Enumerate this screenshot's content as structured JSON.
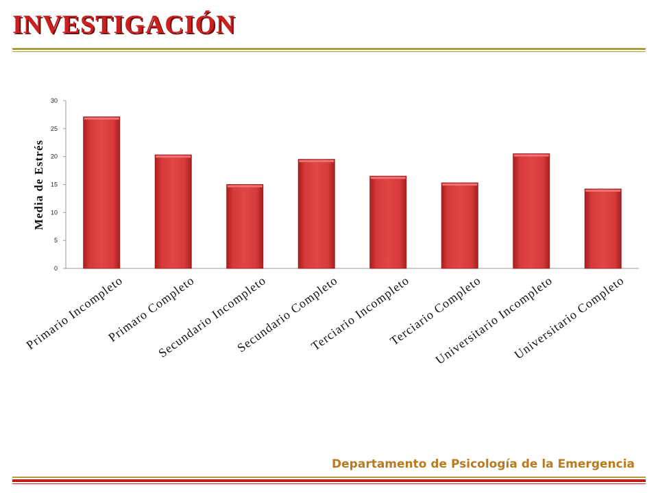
{
  "slide": {
    "title": "INVESTIGACIÓN",
    "footer": "Departamento de Psicología de la Emergencia"
  },
  "colors": {
    "title": "#cc1f1f",
    "bar_fill": "#d83c3c",
    "bar_dark": "#9e1f1f",
    "footer": "#b8791f",
    "rule_gold": "#b49a3a",
    "rule_red": "#c41c1c"
  },
  "chart_data": {
    "type": "bar",
    "ylabel": "Media de Estrés",
    "xlabel": "",
    "ylim": [
      0,
      30
    ],
    "yticks": [
      0,
      5,
      10,
      15,
      20,
      25,
      30
    ],
    "grid": false,
    "legend": "none",
    "categories": [
      "Primario Incompleto",
      "Primaro Completo",
      "Secundario Incompleto",
      "Secundario Completo",
      "Terciario Incompleto",
      "Terciario Completo",
      "Universitario Incompleto",
      "Universitario Completo"
    ],
    "values": [
      27.1,
      20.3,
      15.0,
      19.5,
      16.5,
      15.3,
      20.5,
      14.2
    ]
  }
}
